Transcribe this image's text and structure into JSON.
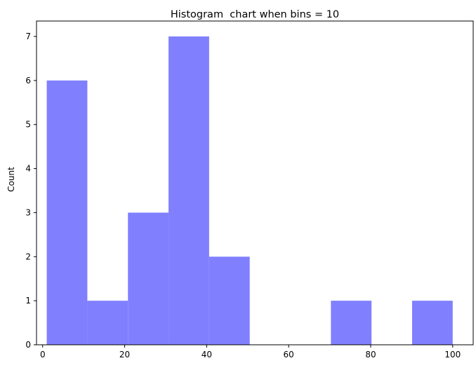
{
  "chart_data": {
    "type": "bar",
    "title": "Histogram  chart when bins = 10",
    "xlabel": "",
    "ylabel": "Count",
    "bin_edges": [
      1,
      10.9,
      20.8,
      30.7,
      40.6,
      50.5,
      60.4,
      70.3,
      80.2,
      90.1,
      100
    ],
    "values": [
      6,
      1,
      3,
      7,
      2,
      0,
      0,
      1,
      0,
      1
    ],
    "xlim": [
      -1.5,
      105
    ],
    "ylim": [
      0,
      7.35
    ],
    "xticks": [
      0,
      20,
      40,
      60,
      80,
      100
    ],
    "yticks": [
      0,
      1,
      2,
      3,
      4,
      5,
      6,
      7
    ],
    "bar_color": "#8080ff",
    "grid": false
  }
}
